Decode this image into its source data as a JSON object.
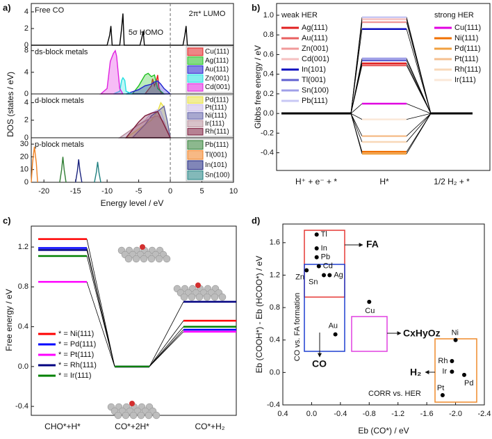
{
  "chart_data": [
    {
      "type": "line",
      "panel_label": "a)",
      "title": "Free CO",
      "ylabel": "DOS (states / eV)",
      "xlim": [
        -22,
        10
      ],
      "ylim": [
        0,
        5
      ],
      "yticks": [
        0,
        2,
        4
      ],
      "vline": 0,
      "annotations": [
        "5σ HOMO",
        "2π* LUMO"
      ],
      "series": [
        {
          "color": "#000000",
          "x": [
            -22,
            -10,
            -9.6,
            -9.4,
            -9.2,
            -8,
            -7.7,
            -7.5,
            -7.3,
            -4.8,
            -4.5,
            -4.3,
            -4.1,
            2,
            2.3,
            2.5,
            2.7,
            10
          ],
          "values": [
            0,
            0,
            1.2,
            2.3,
            0,
            0,
            2,
            3.8,
            0,
            0,
            0.9,
            1.7,
            0,
            0,
            1.2,
            2.3,
            0,
            0
          ]
        }
      ]
    },
    {
      "type": "line",
      "title": "ds-block metals",
      "xlim": [
        -22,
        10
      ],
      "ylim": [
        0,
        9
      ],
      "yticks": [
        0,
        4,
        8
      ],
      "vline": 0,
      "fill": true,
      "series": [
        {
          "name": "Cu(111)",
          "color": "#e02020",
          "x": [
            -4,
            -3,
            -2.8,
            -2.5,
            -2.2,
            -2,
            -1.8,
            -1.5,
            -1
          ],
          "values": [
            0,
            1.5,
            2.8,
            1.5,
            2.5,
            3.5,
            1.2,
            0.3,
            0
          ]
        },
        {
          "name": "Ag(111)",
          "color": "#20c020",
          "x": [
            -6,
            -5,
            -4.5,
            -4,
            -3.5,
            -3,
            -2.5,
            -2,
            -1
          ],
          "values": [
            0,
            1.5,
            2.5,
            3.5,
            3.8,
            3.2,
            3.5,
            1,
            0
          ]
        },
        {
          "name": "Au(111)",
          "color": "#2020d0",
          "x": [
            -7,
            -5,
            -4,
            -3,
            -2.5,
            -2,
            -1.5,
            -1,
            0
          ],
          "values": [
            0,
            0.8,
            1.5,
            1.8,
            2.2,
            2.4,
            1.8,
            1,
            0
          ]
        },
        {
          "name": "Zn(001)",
          "color": "#20e0e0",
          "x": [
            -9,
            -8,
            -7.7,
            -7.5,
            -7.2,
            -7,
            -6
          ],
          "values": [
            0,
            0.5,
            2.5,
            3,
            2.5,
            0.5,
            0
          ]
        },
        {
          "name": "Cd(001)",
          "color": "#e020e0",
          "x": [
            -11,
            -10,
            -9.5,
            -9,
            -8.7,
            -8.5,
            -8,
            -7.5
          ],
          "values": [
            0,
            1,
            6,
            7.5,
            8,
            7,
            1,
            0
          ]
        }
      ]
    },
    {
      "type": "line",
      "title": "d-block metals",
      "xlim": [
        -22,
        10
      ],
      "ylim": [
        0,
        5
      ],
      "yticks": [
        0,
        2,
        4
      ],
      "vline": 0,
      "fill": true,
      "series": [
        {
          "name": "Pd(111)",
          "color": "#e8e040",
          "x": [
            -7,
            -5,
            -3,
            -2,
            -1.5,
            -1,
            -0.5,
            0
          ],
          "values": [
            0,
            1,
            2,
            3,
            4,
            3.5,
            2,
            0
          ]
        },
        {
          "name": "Pt(111)",
          "color": "#c8b8e8",
          "x": [
            -8,
            -6,
            -4,
            -3,
            -2,
            -1.5,
            -1,
            0
          ],
          "values": [
            0,
            1,
            2,
            2.8,
            3.2,
            3,
            2,
            0
          ]
        },
        {
          "name": "Ni(111)",
          "color": "#6060a8",
          "x": [
            -6,
            -4,
            -3,
            -2,
            -1,
            -0.5,
            0
          ],
          "values": [
            0,
            1.5,
            2.5,
            3,
            3.6,
            2,
            0
          ]
        },
        {
          "name": "Ir(111)",
          "color": "#b8909c",
          "x": [
            -8,
            -5,
            -3,
            -2,
            -1,
            0
          ],
          "values": [
            0,
            1.5,
            2.3,
            2.5,
            1.8,
            0
          ]
        },
        {
          "name": "Rh(111)",
          "color": "#7a1a3a",
          "x": [
            -7,
            -5,
            -4,
            -3,
            -2,
            -1,
            0
          ],
          "values": [
            0,
            1.8,
            2.5,
            2.8,
            3,
            1.5,
            0
          ]
        }
      ]
    },
    {
      "type": "line",
      "title": "p-block metals",
      "xlim": [
        -22,
        10
      ],
      "ylim": [
        0,
        35
      ],
      "yticks": [
        0,
        10,
        20,
        30
      ],
      "vline": 0,
      "xticks": [
        -20,
        -15,
        -10,
        -5,
        0,
        5,
        10
      ],
      "xlabel": "Energy level / eV",
      "series": [
        {
          "name": "Pb(111)",
          "color": "#2e7d32",
          "x": [
            -17.5,
            -17.2,
            -17,
            -16.8,
            -16.5
          ],
          "values": [
            0,
            10,
            20,
            10,
            0
          ]
        },
        {
          "name": "Tl(001)",
          "color": "#f08020",
          "x": [
            -22,
            -21.8,
            -21.5,
            -21.2,
            -21
          ],
          "values": [
            0,
            15,
            28,
            15,
            0
          ]
        },
        {
          "name": "In(101)",
          "color": "#1a237e",
          "x": [
            -15,
            -14.7,
            -14.5,
            -14.3,
            -14
          ],
          "values": [
            0,
            9,
            18,
            9,
            0
          ]
        },
        {
          "name": "Sn(100)",
          "color": "#1e7f7f",
          "x": [
            -12,
            -11.7,
            -11.5,
            -11.3,
            -11
          ],
          "values": [
            0,
            8,
            16,
            8,
            0
          ]
        }
      ]
    },
    {
      "type": "level",
      "panel_label": "b)",
      "ylabel": "Gibbs free energy / eV",
      "categories": [
        "H⁺ + e⁻ + *",
        "H*",
        "1/2 H₂ + *"
      ],
      "ylim": [
        -0.58,
        1.12
      ],
      "yticks": [
        -0.4,
        -0.2,
        {
          "value": 0,
          "label": "0.0"
        },
        0.2,
        0.4,
        0.6,
        0.8,
        {
          "value": 1,
          "label": "1.0"
        }
      ],
      "legend_titles": [
        "weak HER",
        "strong HER"
      ],
      "connector_color": "#000000",
      "level_colored": [
        false,
        true,
        false
      ],
      "series": [
        {
          "name": "Ag(111)",
          "legend": 0,
          "color": "#e02020",
          "values": [
            0,
            0.51,
            0
          ]
        },
        {
          "name": "Au(111)",
          "legend": 0,
          "color": "#e86060",
          "values": [
            0,
            0.49,
            0
          ]
        },
        {
          "name": "Zn(001)",
          "legend": 0,
          "color": "#f09a9a",
          "values": [
            0,
            0.93,
            0
          ]
        },
        {
          "name": "Cd(001)",
          "legend": 0,
          "color": "#f5c0c0",
          "values": [
            0,
            0.96,
            0
          ]
        },
        {
          "name": "In(101)",
          "legend": 0,
          "color": "#1010c0",
          "values": [
            0,
            0.86,
            0
          ]
        },
        {
          "name": "Tl(001)",
          "legend": 0,
          "color": "#6060d0",
          "values": [
            0,
            0.54,
            0
          ]
        },
        {
          "name": "Sn(100)",
          "legend": 0,
          "color": "#a0a0e8",
          "values": [
            0,
            0.56,
            0
          ]
        },
        {
          "name": "Pb(111)",
          "legend": 0,
          "color": "#c8c8f4",
          "values": [
            0,
            0.98,
            0
          ]
        },
        {
          "name": "Cu(111)",
          "legend": 1,
          "color": "#e000e0",
          "values": [
            0,
            0.1,
            0
          ]
        },
        {
          "name": "Ni(111)",
          "legend": 1,
          "color": "#f07000",
          "values": [
            0,
            -0.39,
            0
          ]
        },
        {
          "name": "Pd(111)",
          "legend": 1,
          "color": "#f0a040",
          "values": [
            0,
            -0.41,
            0
          ]
        },
        {
          "name": "Pt(111)",
          "legend": 1,
          "color": "#f5c090",
          "values": [
            0,
            -0.23,
            0
          ]
        },
        {
          "name": "Rh(111)",
          "legend": 1,
          "color": "#f8d8b8",
          "values": [
            0,
            -0.29,
            0
          ]
        },
        {
          "name": "Ir(111)",
          "legend": 1,
          "color": "#fbe8d8",
          "values": [
            0,
            -0.06,
            0
          ]
        }
      ]
    },
    {
      "type": "level",
      "panel_label": "c)",
      "ylabel": "Free energy / eV",
      "categories": [
        "CHO*+H*",
        "CO*+2H*",
        "CO*+H₂"
      ],
      "ylim": [
        -0.49,
        1.41
      ],
      "yticks": [
        -0.4,
        {
          "value": 0,
          "label": "0.0"
        },
        0.4,
        0.8,
        1.2
      ],
      "connector_color": "#000000",
      "level_colored": [
        true,
        true,
        true
      ],
      "series": [
        {
          "name": "* = Ni(111)",
          "legend": 0,
          "color": "#ff0000",
          "values": [
            1.28,
            0,
            0.46
          ]
        },
        {
          "name": "* = Pd(111)",
          "legend": 0,
          "color": "#0000ff",
          "values": [
            1.19,
            0,
            0.37
          ]
        },
        {
          "name": "* = Pt(111)",
          "legend": 0,
          "color": "#ff00ff",
          "values": [
            0.85,
            0,
            0.35
          ]
        },
        {
          "name": "* = Rh(111)",
          "legend": 0,
          "color": "#000080",
          "values": [
            1.17,
            0,
            0.65
          ]
        },
        {
          "name": "* = Ir(111)",
          "legend": 0,
          "color": "#008000",
          "values": [
            1.11,
            0,
            0.4
          ]
        }
      ]
    },
    {
      "type": "scatter",
      "panel_label": "d)",
      "xlabel": "Eb (CO*) / eV",
      "ylabel": "Eb (COOH*) - Eb (HCOO*) / eV",
      "xlim": [
        0.4,
        -2.4
      ],
      "ylim": [
        -0.4,
        1.83
      ],
      "xticks": [
        0.4,
        {
          "value": 0,
          "label": "0.0"
        },
        -0.4,
        -0.8,
        -1.2,
        -1.6,
        {
          "value": -2,
          "label": "-2.0"
        },
        -2.4
      ],
      "yticks": [
        -0.4,
        {
          "value": 0,
          "label": "0.0"
        },
        0.4,
        0.8,
        1.2,
        1.6
      ],
      "color": "#000000",
      "labels": [
        "Tl",
        "In",
        "Pb",
        "Cd",
        "Zn",
        "Sn",
        "Ag",
        "Cu",
        "Au",
        "Ni",
        "Rh",
        "Ir",
        "Pd",
        "Pt"
      ],
      "x": [
        -0.07,
        -0.07,
        -0.07,
        -0.1,
        0.07,
        -0.17,
        -0.25,
        -0.8,
        -0.33,
        -2.0,
        -1.95,
        -1.95,
        -2.12,
        -1.82
      ],
      "values": [
        1.7,
        1.53,
        1.42,
        1.31,
        1.26,
        1.2,
        1.2,
        0.87,
        0.47,
        0.4,
        0.14,
        0.01,
        -0.03,
        -0.28
      ],
      "annotations": [
        "FA",
        "CO",
        "H₂",
        "CxHyOz",
        "CO vs. FA formation",
        "CORR vs. HER"
      ]
    }
  ]
}
